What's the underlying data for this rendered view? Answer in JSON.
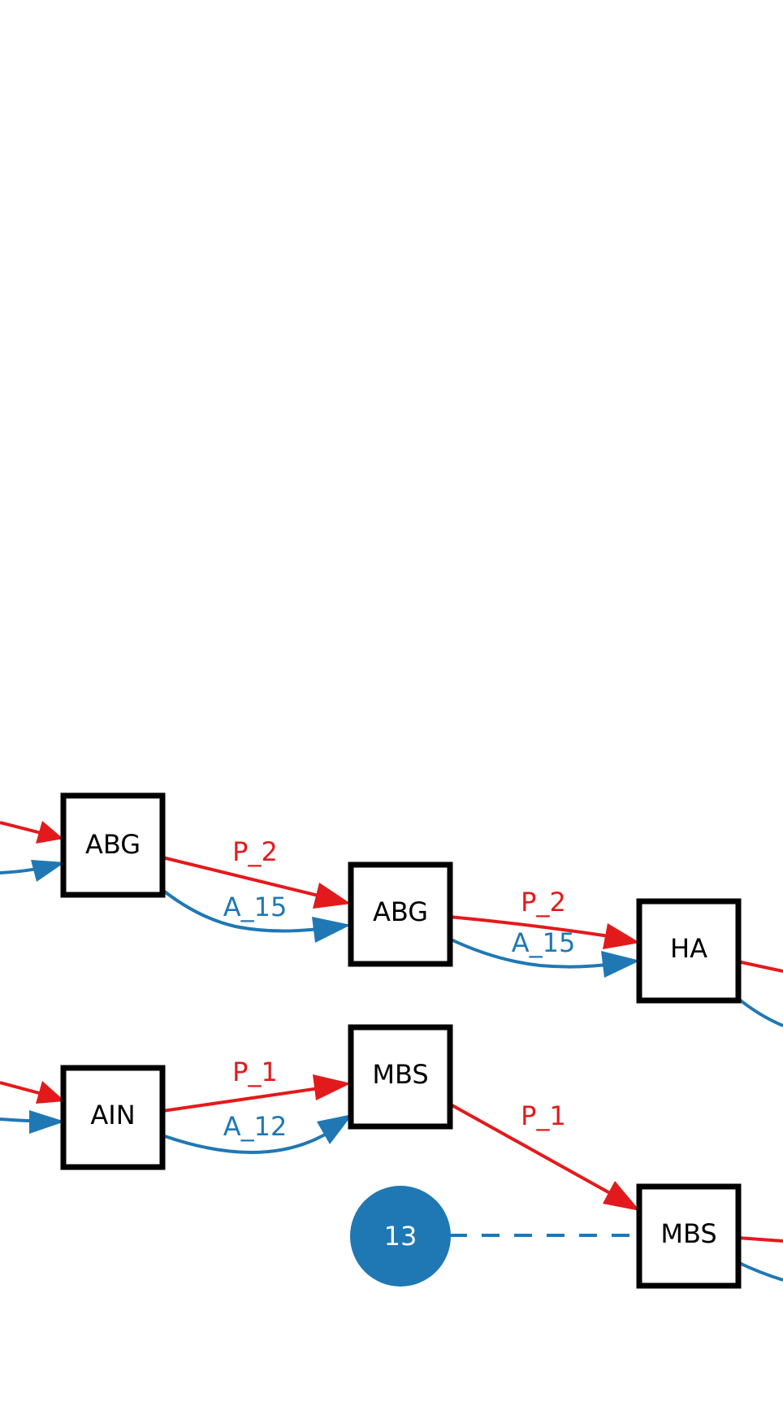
{
  "colors": {
    "p_edge": "#e31a1c",
    "a_edge": "#1f78b4",
    "node_stroke": "#000000",
    "circle_fill": "#1f78b4"
  },
  "nodes": {
    "abg_1": "ABG",
    "abg_2": "ABG",
    "ha": "HA",
    "ain": "AIN",
    "mbs_1": "MBS",
    "mbs_2": "MBS"
  },
  "circle": {
    "label": "13"
  },
  "edges": {
    "abg1_abg2_p": "P_2",
    "abg1_abg2_a": "A_15",
    "abg2_ha_p": "P_2",
    "abg2_ha_a": "A_15",
    "ain_mbs1_p": "P_1",
    "ain_mbs1_a": "A_12",
    "mbs1_mbs2_p": "P_1"
  }
}
